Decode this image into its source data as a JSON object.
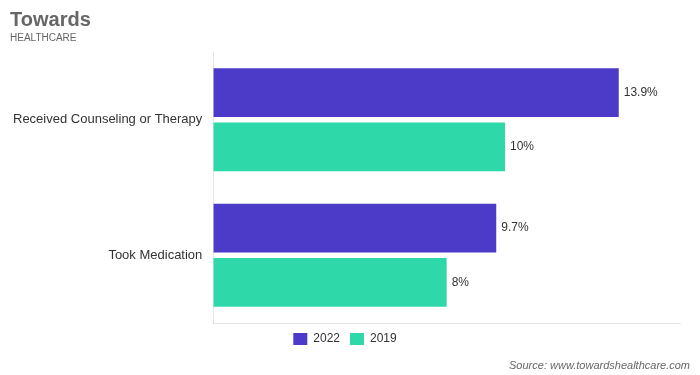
{
  "chart_data": {
    "type": "bar",
    "orientation": "horizontal",
    "title": "Towards",
    "subtitle": "HEALTHCARE",
    "categories": [
      "Received Counseling or Therapy",
      "Took Medication"
    ],
    "series": [
      {
        "name": "2022",
        "color": "#4B3BC8",
        "values": [
          13.9,
          9.7
        ],
        "value_labels": [
          "13.9%",
          "9.7%"
        ]
      },
      {
        "name": "2019",
        "color": "#2ED8A8",
        "values": [
          10.0,
          8.0
        ],
        "value_labels": [
          "10%",
          "8%"
        ]
      }
    ],
    "xlim": [
      0,
      16
    ],
    "data_labels": true,
    "tick_labels": "y",
    "grid": false,
    "legend": "bottom",
    "annotations": [
      "Source: www.towardshealthcare.com"
    ]
  }
}
